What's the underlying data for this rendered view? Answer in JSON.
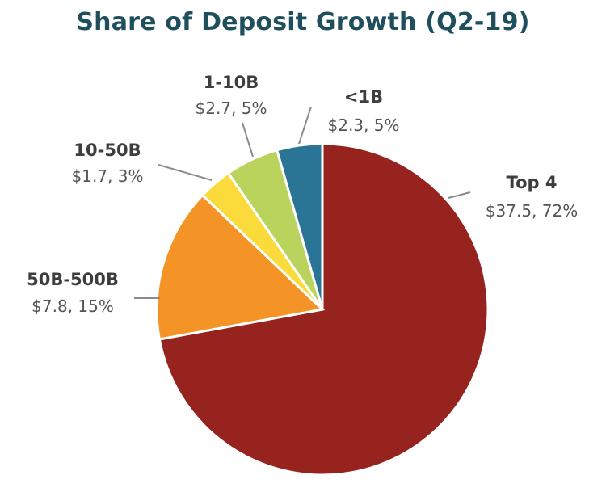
{
  "chart_data": {
    "type": "pie",
    "title": "Share of Deposit Growth (Q2-19)",
    "slices": [
      {
        "name": "Top 4",
        "value": 37.5,
        "percent": 72,
        "value_label": "$37.5, 72%",
        "color": "#97231f"
      },
      {
        "name": "50B-500B",
        "value": 7.8,
        "percent": 15,
        "value_label": "$7.8, 15%",
        "color": "#f49427"
      },
      {
        "name": "10-50B",
        "value": 1.7,
        "percent": 3,
        "value_label": "$1.7, 3%",
        "color": "#fadb3b"
      },
      {
        "name": "1-10B",
        "value": 2.7,
        "percent": 5,
        "value_label": "$2.7, 5%",
        "color": "#b9d35c"
      },
      {
        "name": "<1B",
        "value": 2.3,
        "percent": 5,
        "value_label": "$2.3, 5%",
        "color": "#2a7496"
      }
    ],
    "start": "12 o'clock",
    "direction": "clockwise",
    "legend": "none (direct labels with leader lines)"
  }
}
